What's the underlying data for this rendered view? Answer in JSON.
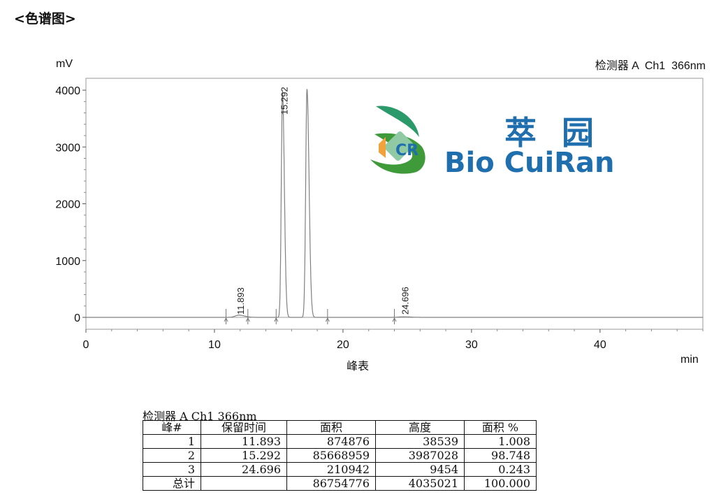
{
  "page": {
    "heading": "<色谱图>"
  },
  "chart_data": {
    "type": "line",
    "detector_label": "检测器 A  Ch1  366nm",
    "ylabel": "mV",
    "xlabel": "峰表",
    "x_unit": "min",
    "xlim": [
      0,
      48
    ],
    "ylim": [
      -200,
      4150
    ],
    "xticks": [
      0,
      10,
      20,
      30,
      40
    ],
    "yticks": [
      0,
      1000,
      2000,
      3000,
      4000
    ],
    "grid": false,
    "peaks": [
      {
        "rt": 11.893,
        "label": "11.893",
        "height_mV": 38.5
      },
      {
        "rt": 15.292,
        "label": "15.292",
        "height_mV": 3987
      },
      {
        "rt": 17.2,
        "label": "",
        "height_mV": 4020
      },
      {
        "rt": 24.696,
        "label": "24.696",
        "height_mV": 9.5
      }
    ],
    "integration_markers": [
      10.9,
      12.6,
      14.8,
      18.8,
      24.0
    ],
    "line_color": "#808080"
  },
  "logo": {
    "cn": "萃园",
    "en": "Bio CuiRan",
    "primary_color": "#1f6fae",
    "accent_color": "#2a9a6a"
  },
  "table": {
    "caption": "检测器 A Ch1 366nm",
    "headers": [
      "峰#",
      "保留时间",
      "面积",
      "高度",
      "面积 %"
    ],
    "rows": [
      [
        "1",
        "11.893",
        "874876",
        "38539",
        "1.008"
      ],
      [
        "2",
        "15.292",
        "85668959",
        "3987028",
        "98.748"
      ],
      [
        "3",
        "24.696",
        "210942",
        "9454",
        "0.243"
      ]
    ],
    "total": [
      "总计",
      "",
      "86754776",
      "4035021",
      "100.000"
    ]
  }
}
